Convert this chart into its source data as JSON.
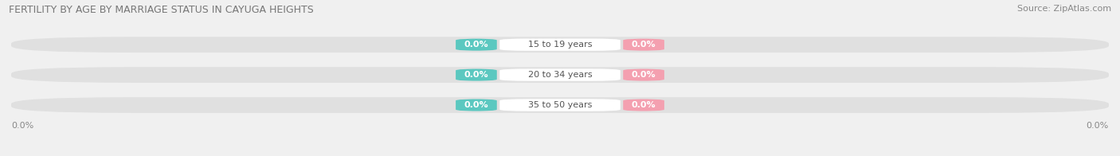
{
  "title": "FERTILITY BY AGE BY MARRIAGE STATUS IN CAYUGA HEIGHTS",
  "source": "Source: ZipAtlas.com",
  "categories": [
    "15 to 19 years",
    "20 to 34 years",
    "35 to 50 years"
  ],
  "married_values": [
    0.0,
    0.0,
    0.0
  ],
  "unmarried_values": [
    0.0,
    0.0,
    0.0
  ],
  "married_color": "#5BC8C0",
  "unmarried_color": "#F4A0B0",
  "bar_bg_color": "#E0E0E0",
  "title_fontsize": 9,
  "source_fontsize": 8,
  "value_fontsize": 8,
  "category_fontsize": 8,
  "legend_fontsize": 9,
  "bg_color": "#F0F0F0",
  "axis_label_color": "#888888",
  "title_color": "#777777",
  "category_text_color": "#555555"
}
